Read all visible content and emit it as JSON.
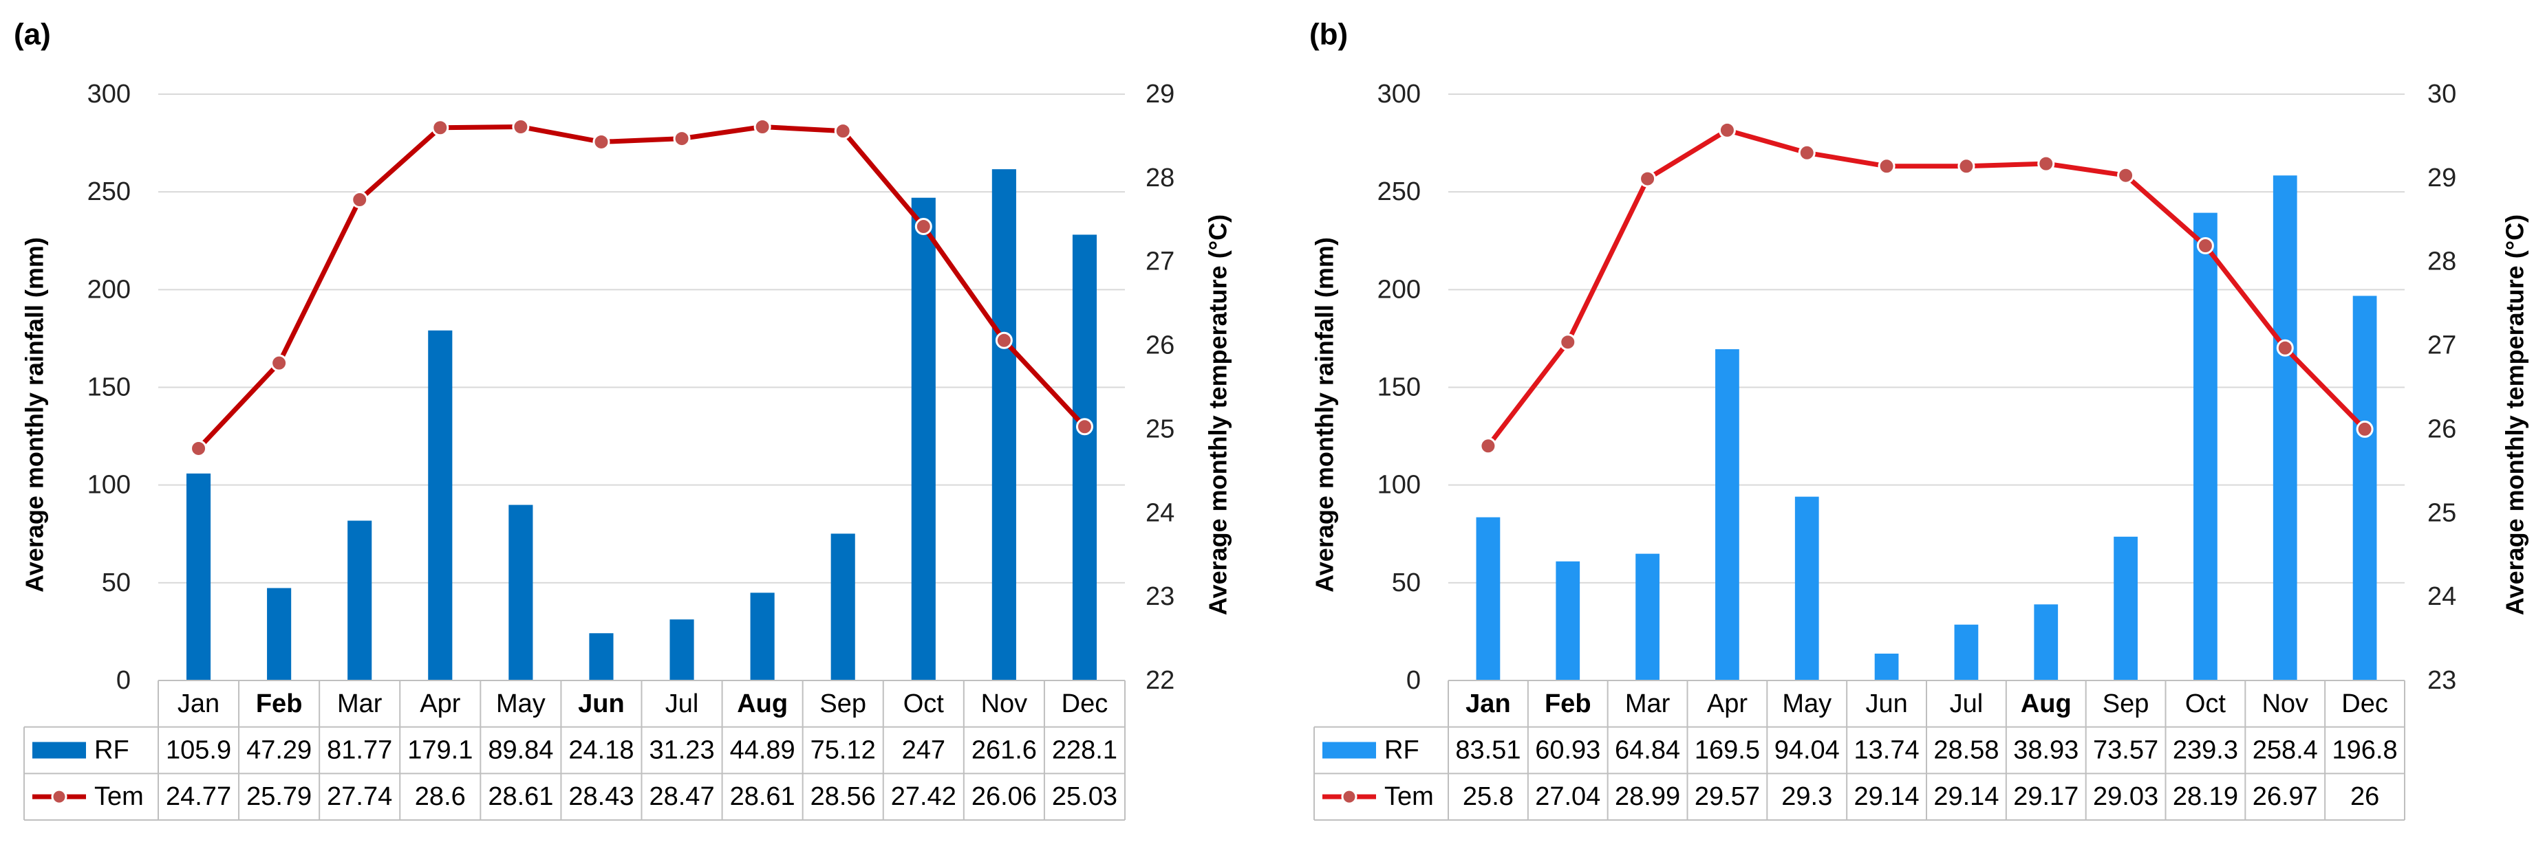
{
  "chart_data": [
    {
      "panel_label": "(a)",
      "type": "bar+line",
      "categories": [
        "Jan",
        "Feb",
        "Mar",
        "Apr",
        "May",
        "Jun",
        "Jul",
        "Aug",
        "Sep",
        "Oct",
        "Nov",
        "Dec"
      ],
      "series": [
        {
          "name": "RF",
          "type": "bar",
          "axis": "left",
          "color": "#0070C0",
          "values": [
            105.9,
            47.29,
            81.77,
            179.1,
            89.84,
            24.18,
            31.23,
            44.89,
            75.12,
            247,
            261.6,
            228.1
          ]
        },
        {
          "name": "Tem",
          "type": "line",
          "axis": "right",
          "color": "#C00000",
          "values": [
            24.77,
            25.79,
            27.74,
            28.6,
            28.61,
            28.43,
            28.47,
            28.61,
            28.56,
            27.42,
            26.06,
            25.03
          ]
        }
      ],
      "ylabel": "Average monthly rainfall (mm)",
      "y2label": "Average monthly temperature (°C)",
      "ylim": [
        0,
        300
      ],
      "yticks": [
        0,
        50,
        100,
        150,
        200,
        250,
        300
      ],
      "y2lim": [
        22,
        29
      ],
      "y2ticks": [
        22,
        23,
        24,
        25,
        26,
        27,
        28,
        29
      ],
      "table_rf": [
        "105.9",
        "47.29",
        "81.77",
        "179.1",
        "89.84",
        "24.18",
        "31.23",
        "44.89",
        "75.12",
        "247",
        "261.6",
        "228.1"
      ],
      "table_tem": [
        "24.77",
        "25.79",
        "27.74",
        "28.6",
        "28.61",
        "28.43",
        "28.47",
        "28.61",
        "28.56",
        "27.42",
        "26.06",
        "25.03"
      ],
      "bold_months": [
        "Feb",
        "Jun",
        "Aug"
      ]
    },
    {
      "panel_label": "(b)",
      "type": "bar+line",
      "categories": [
        "Jan",
        "Feb",
        "Mar",
        "Apr",
        "May",
        "Jun",
        "Jul",
        "Aug",
        "Sep",
        "Oct",
        "Nov",
        "Dec"
      ],
      "series": [
        {
          "name": "RF",
          "type": "bar",
          "axis": "left",
          "color": "#2196F3",
          "values": [
            83.51,
            60.93,
            64.84,
            169.5,
            94.04,
            13.74,
            28.58,
            38.93,
            73.57,
            239.3,
            258.4,
            196.8
          ]
        },
        {
          "name": "Tem",
          "type": "line",
          "axis": "right",
          "color": "#E0161B",
          "values": [
            25.8,
            27.04,
            28.99,
            29.57,
            29.3,
            29.14,
            29.14,
            29.17,
            29.03,
            28.19,
            26.97,
            26
          ]
        }
      ],
      "ylabel": "Average monthly rainfall (mm)",
      "y2label": "Average monthly temperature (°C)",
      "ylim": [
        0,
        300
      ],
      "yticks": [
        0,
        50,
        100,
        150,
        200,
        250,
        300
      ],
      "y2lim": [
        23,
        30
      ],
      "y2ticks": [
        23,
        24,
        25,
        26,
        27,
        28,
        29,
        30
      ],
      "table_rf": [
        "83.51",
        "60.93",
        "64.84",
        "169.5",
        "94.04",
        "13.74",
        "28.58",
        "38.93",
        "73.57",
        "239.3",
        "258.4",
        "196.8"
      ],
      "table_tem": [
        "25.8",
        "27.04",
        "28.99",
        "29.57",
        "29.3",
        "29.14",
        "29.14",
        "29.17",
        "29.03",
        "28.19",
        "26.97",
        "26"
      ],
      "bold_months": [
        "Jan",
        "Feb",
        "Aug"
      ]
    }
  ]
}
